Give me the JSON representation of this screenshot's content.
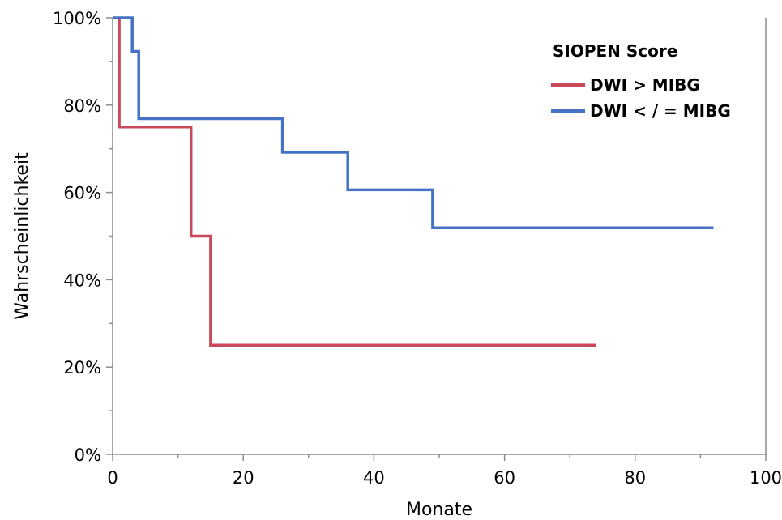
{
  "chart_data": {
    "type": "line",
    "step": true,
    "xlabel": "Monate",
    "ylabel": "Wahrscheinlichkeit",
    "xlim": [
      0,
      100
    ],
    "ylim": [
      0,
      100
    ],
    "x_ticks": [
      0,
      20,
      40,
      60,
      80,
      100
    ],
    "x_tick_labels": [
      "0",
      "20",
      "40",
      "60",
      "80",
      "100"
    ],
    "y_ticks": [
      0,
      20,
      40,
      60,
      80,
      100
    ],
    "y_tick_labels": [
      "0%",
      "20%",
      "40%",
      "60%",
      "80%",
      "100%"
    ],
    "grid": false,
    "legend": {
      "title": "SIOPEN Score",
      "placement": "top-right"
    },
    "series": [
      {
        "name": "DWI > MIBG",
        "color": "#c9495a",
        "points": [
          [
            1,
            100
          ],
          [
            1,
            75
          ],
          [
            12,
            75
          ],
          [
            12,
            50
          ],
          [
            15,
            50
          ],
          [
            15,
            25
          ],
          [
            74,
            25
          ]
        ]
      },
      {
        "name": "DWI < / = MIBG",
        "color": "#4472c4",
        "points": [
          [
            0,
            100
          ],
          [
            3,
            100
          ],
          [
            3,
            92.3
          ],
          [
            4,
            92.3
          ],
          [
            4,
            76.9
          ],
          [
            26,
            76.9
          ],
          [
            26,
            69.2
          ],
          [
            36,
            69.2
          ],
          [
            36,
            60.6
          ],
          [
            49,
            60.6
          ],
          [
            49,
            51.9
          ],
          [
            92,
            51.9
          ]
        ]
      }
    ]
  }
}
